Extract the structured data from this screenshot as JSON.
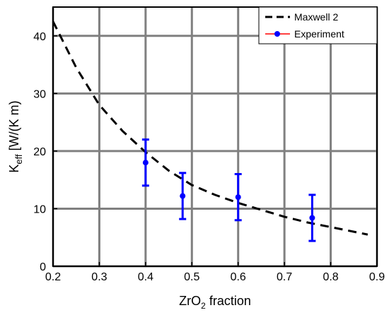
{
  "chart_data": {
    "type": "line",
    "xlabel": {
      "main": "ZrO",
      "sub": "2",
      "rest": " fraction"
    },
    "ylabel": {
      "main": "K",
      "sub": "eff",
      "rest": " [W/(K m)"
    },
    "xlim": [
      0.2,
      0.9
    ],
    "ylim": [
      0,
      45
    ],
    "x_ticks": [
      0.2,
      0.3,
      0.4,
      0.5,
      0.6,
      0.7,
      0.8,
      0.9
    ],
    "x_tick_labels": [
      "0.2",
      "0.3",
      "0.4",
      "0.5",
      "0.6",
      "0.7",
      "0.8",
      "0.9"
    ],
    "y_ticks": [
      0,
      10,
      20,
      30,
      40
    ],
    "y_tick_labels": [
      "0",
      "10",
      "20",
      "30",
      "40"
    ],
    "grid": true,
    "legend_position": "top-right",
    "series": [
      {
        "name": "Maxwell 2",
        "style": "dashed",
        "color": "#000000",
        "x": [
          0.2,
          0.25,
          0.3,
          0.35,
          0.4,
          0.45,
          0.5,
          0.55,
          0.6,
          0.65,
          0.7,
          0.75,
          0.8,
          0.85,
          0.88
        ],
        "y": [
          42.5,
          34.5,
          28.0,
          23.5,
          19.8,
          16.6,
          14.1,
          12.4,
          11.0,
          9.8,
          8.6,
          7.6,
          6.8,
          6.0,
          5.5
        ]
      },
      {
        "name": "Experiment",
        "style": "markers-errorbars",
        "color": "#0000ff",
        "legend_line_color": "#ff0000",
        "x": [
          0.4,
          0.48,
          0.6,
          0.76
        ],
        "y": [
          18.0,
          12.2,
          12.0,
          8.4
        ],
        "yerr": [
          4.0,
          4.0,
          4.0,
          4.0
        ]
      }
    ]
  }
}
